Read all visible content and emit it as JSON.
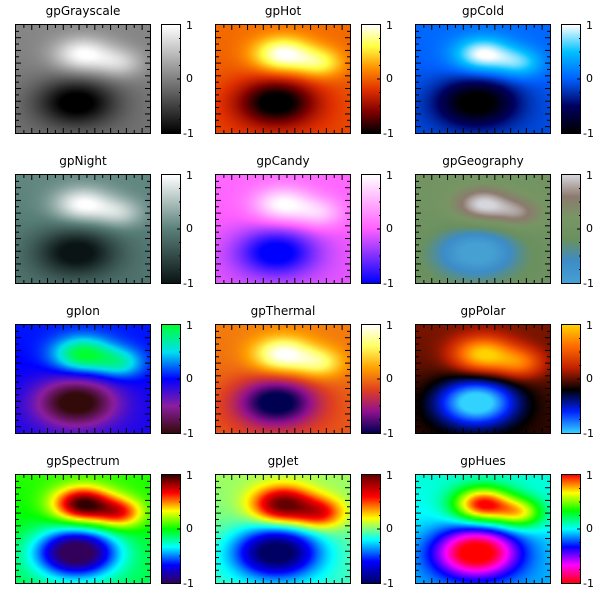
{
  "chart_data": {
    "type": "heatmap",
    "description": "3x4 grid of identical 2D scalar fields rendered with 12 different gradient presets, each with a vertical colorbar",
    "grid": {
      "rows": 4,
      "cols": 3
    },
    "colorbar": {
      "ticks": [
        1,
        0,
        -1
      ],
      "range": [
        -1,
        1
      ]
    },
    "field": {
      "maxima": [
        {
          "x": 0.5,
          "y": 0.27,
          "value": 1.0
        },
        {
          "x": 0.78,
          "y": 0.35,
          "value": 0.7
        }
      ],
      "minimum": {
        "x": 0.45,
        "y": 0.72,
        "value": -1.0
      }
    },
    "panels": [
      {
        "title": "gpGrayscale",
        "stops": [
          "#000000",
          "#808080",
          "#ffffff"
        ]
      },
      {
        "title": "gpHot",
        "stops": [
          "#000000",
          "#800000",
          "#e03000",
          "#ff9000",
          "#ffff40",
          "#ffffff"
        ]
      },
      {
        "title": "gpCold",
        "stops": [
          "#000000",
          "#000060",
          "#0060ff",
          "#00c0ff",
          "#ffffff"
        ]
      },
      {
        "title": "gpNight",
        "stops": [
          "#0a1414",
          "#5a807a",
          "#ffffff"
        ]
      },
      {
        "title": "gpCandy",
        "stops": [
          "#0000ff",
          "#ff60ff",
          "#ffffff"
        ]
      },
      {
        "title": "gpGeography",
        "stops": [
          "#46a0d2",
          "#3c8cc8",
          "#6a9060",
          "#789664",
          "#8c7a6e",
          "#d6d6dc"
        ]
      },
      {
        "title": "gpIon",
        "stops": [
          "#320a0a",
          "#8c1ea0",
          "#0000ff",
          "#00e0f0",
          "#00ff32"
        ]
      },
      {
        "title": "gpThermal",
        "stops": [
          "#000050",
          "#901090",
          "#e04020",
          "#ffa000",
          "#ffff60",
          "#ffffff"
        ]
      },
      {
        "title": "gpPolar",
        "stops": [
          "#32d2ff",
          "#0020ff",
          "#000000",
          "#c02000",
          "#ff6a00",
          "#ffd200"
        ]
      },
      {
        "title": "gpSpectrum",
        "stops": [
          "#32005a",
          "#0000ff",
          "#00ffff",
          "#00ff00",
          "#ffff00",
          "#ff0000",
          "#320000"
        ]
      },
      {
        "title": "gpJet",
        "stops": [
          "#000064",
          "#0000ff",
          "#00ffff",
          "#ffff00",
          "#ff0000",
          "#640000"
        ]
      },
      {
        "title": "gpHues",
        "stops": [
          "#ff0000",
          "#ff00ff",
          "#0000ff",
          "#00ffff",
          "#00ff00",
          "#ffff00",
          "#ff0000"
        ]
      }
    ]
  }
}
